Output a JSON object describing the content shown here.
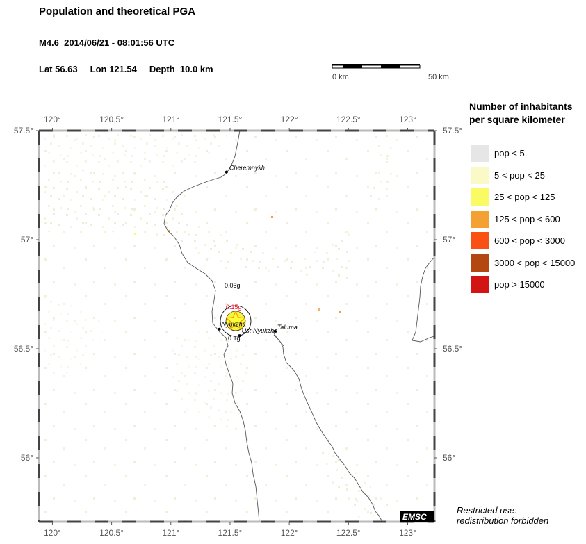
{
  "header": {
    "title": "Population and theoretical PGA",
    "event_line": "M4.6  2014/06/21 - 08:01:56 UTC",
    "lat": "Lat 56.63",
    "lon": "Lon 121.54",
    "depth": "Depth  10.0 km"
  },
  "scale_bar": {
    "left_label": "0 km",
    "right_label": "50 km"
  },
  "map": {
    "lon_ticks": [
      "120°",
      "120.5°",
      "121°",
      "121.5°",
      "122°",
      "122.5°",
      "123°"
    ],
    "lat_ticks": [
      "57.5°",
      "57°",
      "56.5°",
      "56°"
    ],
    "places": [
      {
        "name": "Cheremnykh",
        "lon": 121.47,
        "lat": 57.31
      },
      {
        "name": "Nyukzha",
        "lon": 121.41,
        "lat": 56.59
      },
      {
        "name": "Ust-Nyukzha",
        "lon": 121.58,
        "lat": 56.56
      },
      {
        "name": "Taluma",
        "lon": 121.88,
        "lat": 56.58
      }
    ],
    "pga_labels": [
      {
        "text": "0.05g",
        "color": "#000000"
      },
      {
        "text": "0.15g",
        "color": "#e8001c"
      },
      {
        "text": "0.1g",
        "color": "#000000"
      }
    ],
    "epicenter": {
      "lon": 121.54,
      "lat": 56.63
    },
    "logo": "EMSC"
  },
  "legend": {
    "title_line1": "Number of inhabitants",
    "title_line2": "per square kilometer",
    "items": [
      {
        "label": "pop < 5",
        "color": "#e6e6e6"
      },
      {
        "label": "5 < pop < 25",
        "color": "#fafac8"
      },
      {
        "label": "25 < pop < 125",
        "color": "#fafa64"
      },
      {
        "label": "125 < pop < 600",
        "color": "#f5a032"
      },
      {
        "label": "600 < pop < 3000",
        "color": "#fa5014"
      },
      {
        "label": "3000 < pop < 15000",
        "color": "#b4460f"
      },
      {
        "label": "pop > 15000",
        "color": "#d21414"
      }
    ]
  },
  "footer": {
    "line1": "Restricted use:",
    "line2": "redistribution forbidden"
  }
}
